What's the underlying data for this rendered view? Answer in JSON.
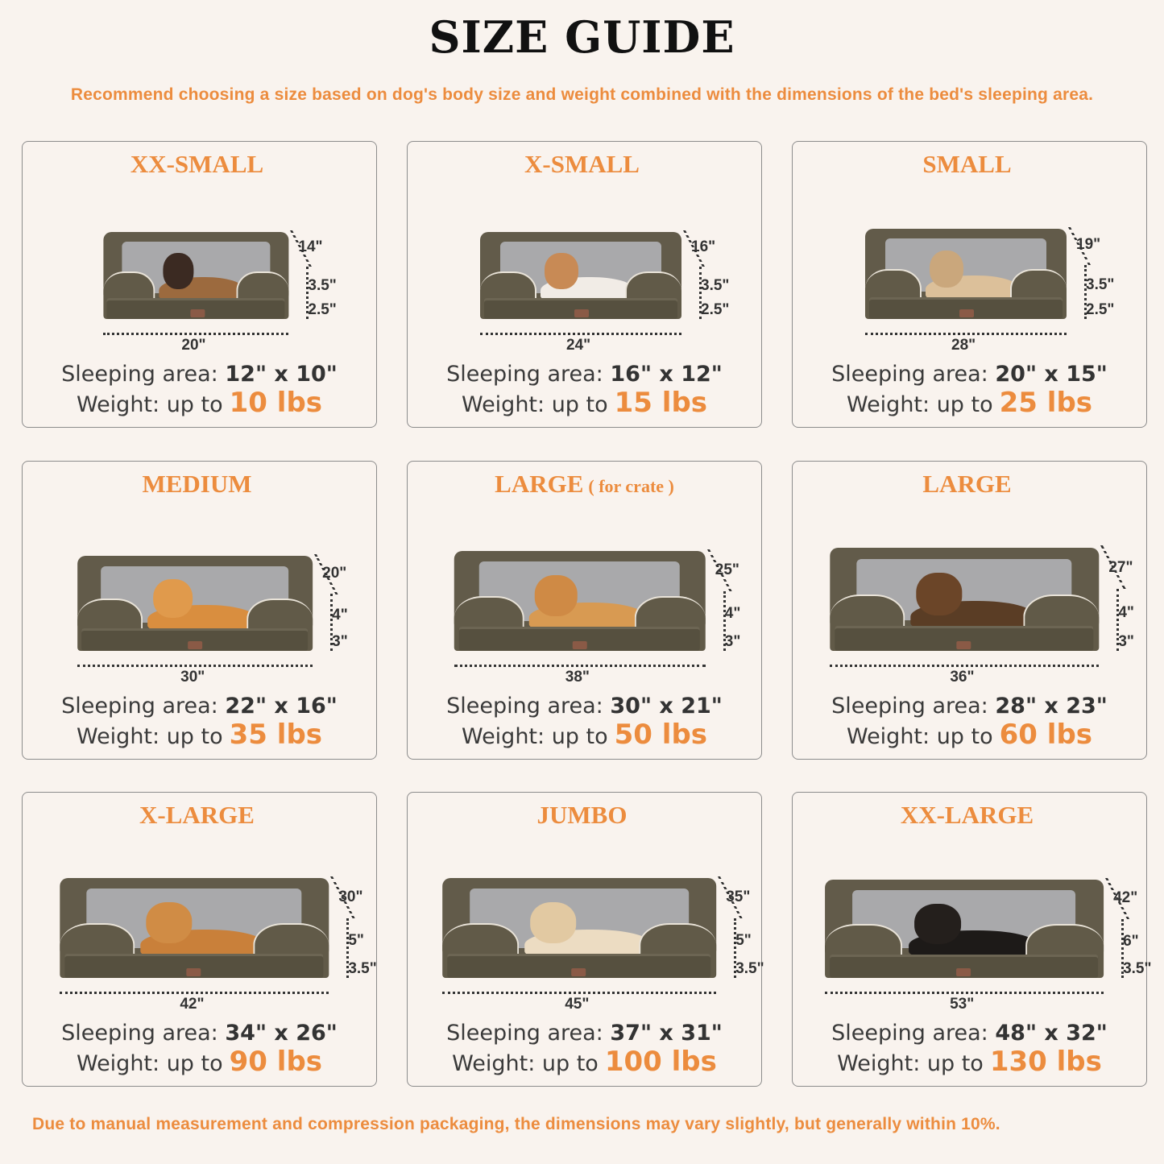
{
  "title": "SIZE GUIDE",
  "subtitle": "Recommend choosing a size based on dog's body size and weight combined with the dimensions of the bed's sleeping area.",
  "footer": "Due to manual measurement and compression packaging, the dimensions may vary slightly, but generally within 10%.",
  "colors": {
    "accent": "#ec8c3e",
    "background": "#f9f3ee",
    "bed": "#5e5848",
    "cushion": "#a9a9ab"
  },
  "sleeping_label": "Sleeping area:",
  "weight_label": "Weight:  up to",
  "sizes": [
    {
      "name": "XX-SMALL",
      "suffix": "",
      "pet": "cat-icon",
      "depth": "14\"",
      "h1": "3.5\"",
      "h2": "2.5\"",
      "width": "20\"",
      "sleeping": "12\" x 10\"",
      "weight": "10 lbs",
      "petColor": "#9c6a3e",
      "headColor": "#3b2a22"
    },
    {
      "name": "X-SMALL",
      "suffix": "",
      "pet": "small-dog-icon",
      "depth": "16\"",
      "h1": "3.5\"",
      "h2": "2.5\"",
      "width": "24\"",
      "sleeping": "16\" x 12\"",
      "weight": "15 lbs",
      "petColor": "#f1ece6",
      "headColor": "#c88a55"
    },
    {
      "name": "SMALL",
      "suffix": "",
      "pet": "french-bulldog-icon",
      "depth": "19\"",
      "h1": "3.5\"",
      "h2": "2.5\"",
      "width": "28\"",
      "sleeping": "20\" x 15\"",
      "weight": "25 lbs",
      "petColor": "#dcc09a",
      "headColor": "#caa77c"
    },
    {
      "name": "MEDIUM",
      "suffix": "",
      "pet": "corgi-icon",
      "depth": "20\"",
      "h1": "4\"",
      "h2": "3\"",
      "width": "30\"",
      "sleeping": "22\" x 16\"",
      "weight": "35 lbs",
      "petColor": "#d98e3f",
      "headColor": "#e09a4c"
    },
    {
      "name": "LARGE",
      "suffix": "( for crate )",
      "pet": "shiba-inu-icon",
      "depth": "25\"",
      "h1": "4\"",
      "h2": "3\"",
      "width": "38\"",
      "sleeping": "30\" x 21\"",
      "weight": "50 lbs",
      "petColor": "#d89a52",
      "headColor": "#cf8a45"
    },
    {
      "name": "LARGE",
      "suffix": "",
      "pet": "shepherd-dog-icon",
      "depth": "27\"",
      "h1": "4\"",
      "h2": "3\"",
      "width": "36\"",
      "sleeping": "28\" x 23\"",
      "weight": "60 lbs",
      "petColor": "#5a3d25",
      "headColor": "#6b4528"
    },
    {
      "name": "X-LARGE",
      "suffix": "",
      "pet": "golden-retriever-icon",
      "depth": "30\"",
      "h1": "5\"",
      "h2": "3.5\"",
      "width": "42\"",
      "sleeping": "34\" x 26\"",
      "weight": "90 lbs",
      "petColor": "#c9803a",
      "headColor": "#d08c45"
    },
    {
      "name": "JUMBO",
      "suffix": "",
      "pet": "labrador-icon",
      "depth": "35\"",
      "h1": "5\"",
      "h2": "3.5\"",
      "width": "45\"",
      "sleeping": "37\" x 31\"",
      "weight": "100 lbs",
      "petColor": "#ecdcc2",
      "headColor": "#e2c9a2"
    },
    {
      "name": "XX-LARGE",
      "suffix": "",
      "pet": "rottweiler-icon",
      "depth": "42\"",
      "h1": "6\"",
      "h2": "3.5\"",
      "width": "53\"",
      "sleeping": "48\" x 32\"",
      "weight": "130 lbs",
      "petColor": "#1d1a18",
      "headColor": "#241f1c"
    }
  ]
}
